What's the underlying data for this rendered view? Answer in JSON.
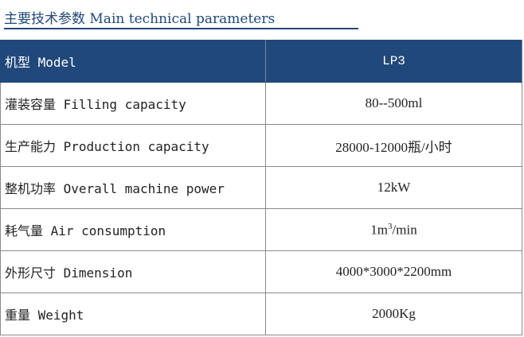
{
  "title": "主要技术参数 Main technical parameters",
  "header_color": "#21487a",
  "header": {
    "label": "机型 Model",
    "value": "LP3"
  },
  "rows": [
    {
      "label": "灌装容量 Filling capacity",
      "value": "80--500ml"
    },
    {
      "label": "生产能力 Production capacity",
      "value": "28000-12000瓶/小时"
    },
    {
      "label": "整机功率 Overall machine power",
      "value": "12kW"
    },
    {
      "label": "耗气量 Air consumption",
      "value_pre": "1m",
      "value_sup": "3",
      "value_post": "/min"
    },
    {
      "label": "外形尺寸 Dimension",
      "value": "4000*3000*2200mm"
    },
    {
      "label": "重量 Weight",
      "value": "2000Kg"
    }
  ]
}
